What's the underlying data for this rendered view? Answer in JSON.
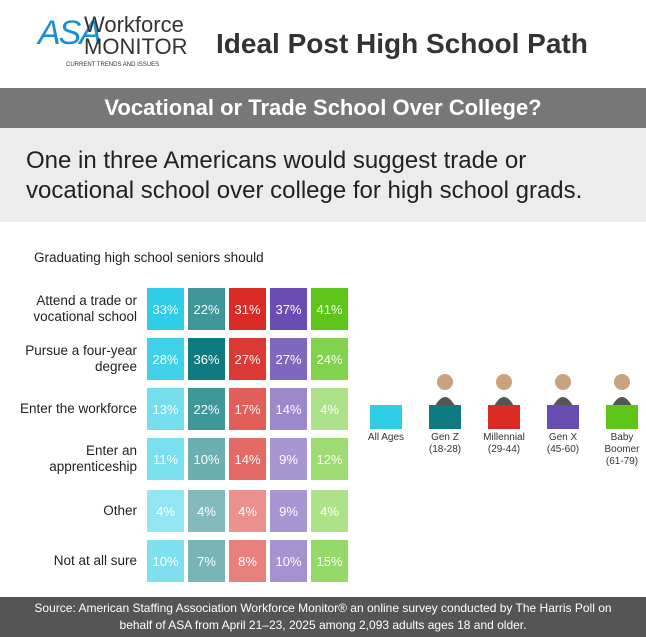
{
  "header": {
    "logo_top": "ASA",
    "logo_word1": "Workforce",
    "logo_word2": "MONITOR",
    "logo_tagline": "CURRENT TRENDS AND ISSUES",
    "title": "Ideal Post High School Path"
  },
  "banner": "Vocational or Trade School Over College?",
  "headline": "One in three Americans would suggest trade or vocational school over college for high school grads.",
  "chart_data": {
    "type": "heatmap",
    "title": "Graduating high school seniors should",
    "categories": [
      "Attend a trade or vocational school",
      "Pursue a four-year degree",
      "Enter the workforce",
      "Enter an apprenticeship",
      "Other",
      "Not at all sure"
    ],
    "series": [
      {
        "name": "All Ages",
        "ages": null,
        "color": "#2fcde6",
        "values": [
          33,
          28,
          13,
          11,
          4,
          10
        ],
        "value_labels": [
          "33%",
          "28%",
          "13%",
          "11%",
          "4%",
          "10%"
        ]
      },
      {
        "name": "Gen Z",
        "ages": "(18-28)",
        "color": "#0d7b7f",
        "values": [
          22,
          36,
          22,
          10,
          4,
          7
        ],
        "value_labels": [
          "22%",
          "36%",
          "22%",
          "10%",
          "4%",
          "7%"
        ]
      },
      {
        "name": "Millennial",
        "ages": "(29-44)",
        "color": "#d92b24",
        "values": [
          31,
          27,
          17,
          14,
          4,
          8
        ],
        "value_labels": [
          "31%",
          "27%",
          "17%",
          "14%",
          "4%",
          "8%"
        ]
      },
      {
        "name": "Gen X",
        "ages": "(45-60)",
        "color": "#6a4db3",
        "values": [
          37,
          27,
          14,
          9,
          9,
          10
        ],
        "value_labels": [
          "37%",
          "27%",
          "14%",
          "9%",
          "9%",
          "10%"
        ]
      },
      {
        "name": "Baby Boomer",
        "ages": "(61-79)",
        "color": "#5ec61a",
        "values": [
          41,
          24,
          4,
          12,
          4,
          15
        ],
        "value_labels": [
          "41%",
          "24%",
          "4%",
          "12%",
          "4%",
          "15%"
        ]
      }
    ]
  },
  "source": "Source: American Staffing Association Workforce Monitor® an online survey conducted by The Harris Poll on behalf of ASA from April 21–23, 2025 among 2,093 adults ages 18 and older."
}
